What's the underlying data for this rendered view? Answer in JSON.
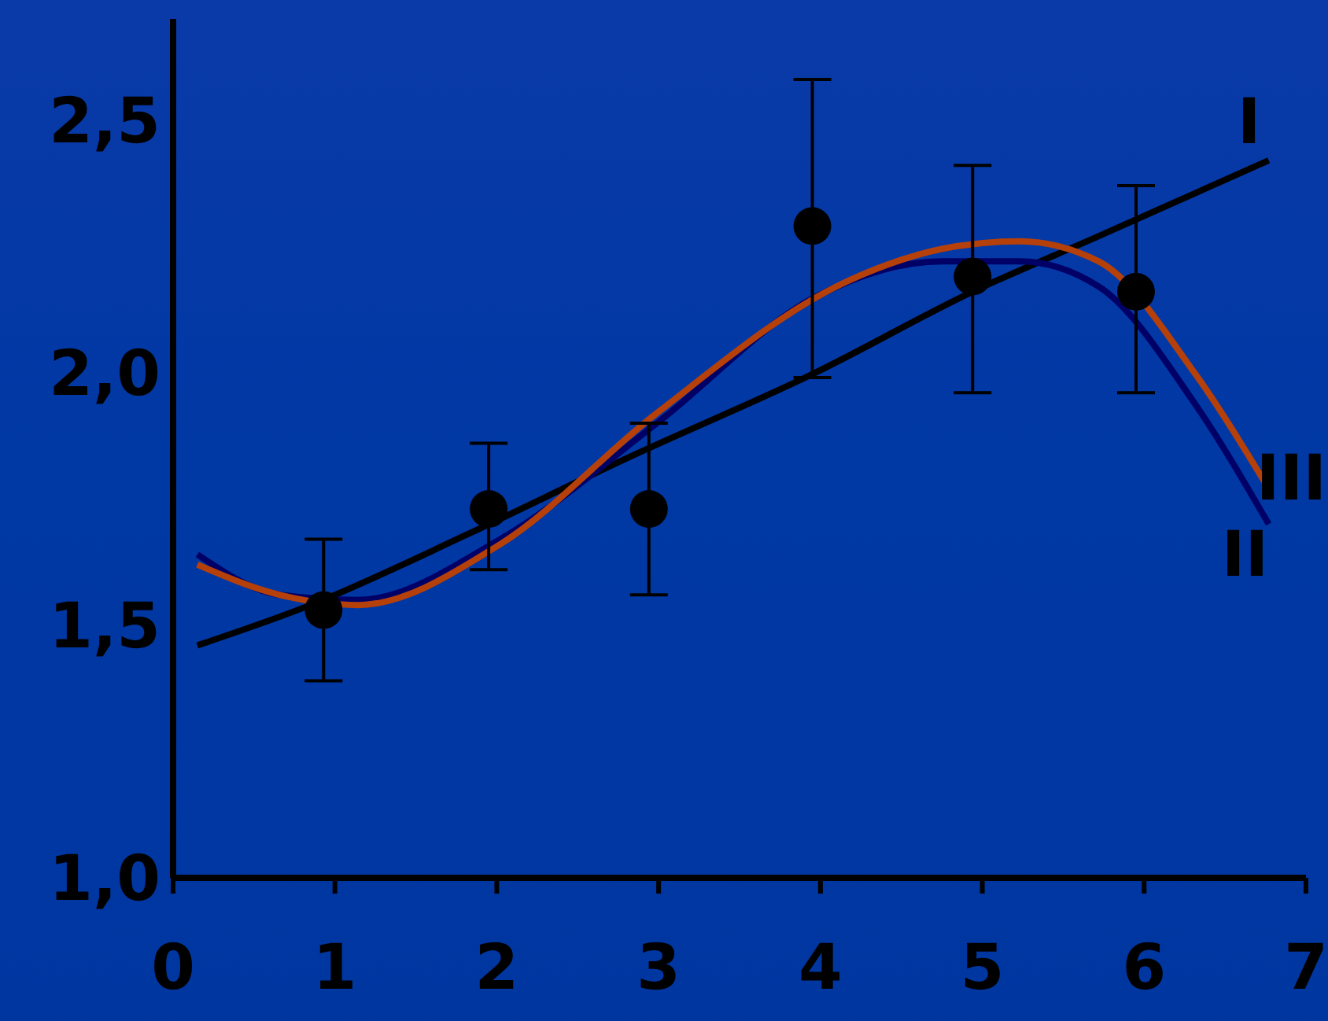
{
  "chart_data": {
    "type": "line",
    "xlim": [
      0,
      7
    ],
    "xticks": [
      0,
      1,
      2,
      3,
      4,
      5,
      6,
      7
    ],
    "ylim": [
      1.0,
      2.7
    ],
    "yticks": [
      {
        "value": 1.0,
        "label": "1,0"
      },
      {
        "value": 1.5,
        "label": "1,5"
      },
      {
        "value": 2.0,
        "label": "2,0"
      },
      {
        "value": 2.5,
        "label": "2,5"
      }
    ],
    "grid": false,
    "legend": false,
    "marker": "none",
    "line_style": "solid",
    "series": [
      {
        "name": "I",
        "color": "#000000",
        "x": [
          0.15,
          0.85,
          1.82,
          2.8,
          3.97,
          4.94,
          5.72,
          6.77
        ],
        "values": [
          1.46,
          1.54,
          1.68,
          1.83,
          2.0,
          2.16,
          2.27,
          2.42
        ]
      },
      {
        "name": "II",
        "color": "#000066",
        "x": [
          0.15,
          0.66,
          1.14,
          2.02,
          2.99,
          3.97,
          4.75,
          5.23,
          5.72,
          6.31,
          6.77
        ],
        "values": [
          1.64,
          1.56,
          1.55,
          1.67,
          1.9,
          2.15,
          2.22,
          2.22,
          2.17,
          1.94,
          1.7
        ]
      },
      {
        "name": "III",
        "color": "#b5400a",
        "x": [
          0.15,
          0.66,
          1.14,
          2.02,
          2.99,
          4.16,
          4.84,
          5.23,
          5.72,
          6.31,
          6.77
        ],
        "values": [
          1.62,
          1.56,
          1.54,
          1.66,
          1.92,
          2.18,
          2.25,
          2.26,
          2.22,
          2.0,
          1.77
        ]
      },
      {
        "type": "scatter",
        "color": "#000000",
        "marker": "circle",
        "x": [
          0.93,
          1.95,
          2.94,
          3.95,
          4.94,
          5.95
        ],
        "values": [
          1.53,
          1.73,
          1.73,
          2.29,
          2.19,
          2.16
        ],
        "errors": [
          [
            1.39,
            1.67
          ],
          [
            1.61,
            1.86
          ],
          [
            1.56,
            1.9
          ],
          [
            1.99,
            2.58
          ],
          [
            1.96,
            2.41
          ],
          [
            1.96,
            2.37
          ]
        ]
      }
    ]
  }
}
